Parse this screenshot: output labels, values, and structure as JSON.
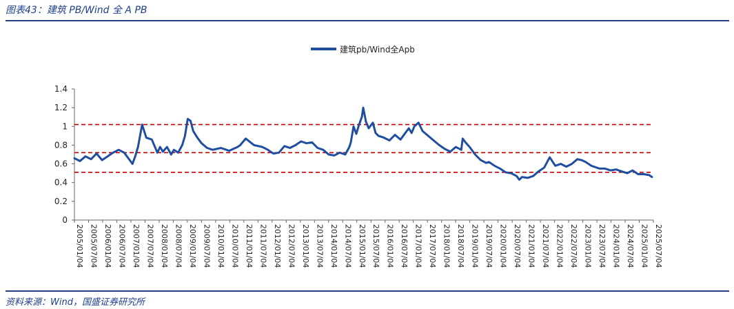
{
  "header": {
    "title": "图表43：建筑 PB/Wind 全 A PB"
  },
  "footer": {
    "source": "资料来源：Wind，国盛证券研究所"
  },
  "colors": {
    "series": "#1f4ea1",
    "reference": "#c00000",
    "accent": "#1f3f8a"
  },
  "chart_data": {
    "type": "line",
    "title": "",
    "xlabel": "",
    "ylabel": "",
    "ylim": [
      0,
      1.4
    ],
    "yticks": [
      "0",
      "0.2",
      "0.4",
      "0.6",
      "0.8",
      "1",
      "1.2",
      "1.4"
    ],
    "x_tick_labels": [
      "2005/01/04",
      "2005/07/04",
      "2006/01/04",
      "2006/07/04",
      "2007/01/04",
      "2007/07/04",
      "2008/01/04",
      "2008/07/04",
      "2009/01/04",
      "2009/07/04",
      "2010/01/04",
      "2010/07/04",
      "2011/01/04",
      "2011/07/04",
      "2012/01/04",
      "2012/07/04",
      "2013/01/04",
      "2013/07/04",
      "2014/01/04",
      "2014/07/04",
      "2015/01/04",
      "2015/07/04",
      "2016/01/04",
      "2016/07/04",
      "2017/01/04",
      "2017/07/04",
      "2018/01/04",
      "2018/07/04",
      "2019/01/04",
      "2019/07/04",
      "2020/01/04",
      "2020/07/04",
      "2021/01/04",
      "2021/07/04",
      "2022/01/04",
      "2022/07/04",
      "2023/01/04",
      "2023/07/04",
      "2024/01/04",
      "2024/07/04",
      "2025/01/04",
      "2025/07/04"
    ],
    "reference_lines": [
      1.02,
      0.72,
      0.51
    ],
    "legend": {
      "position": "top",
      "label": "建筑pb/Wind全Apb"
    },
    "series": [
      {
        "name": "建筑pb/Wind全Apb",
        "x": [
          2005.0,
          2005.2,
          2005.4,
          2005.6,
          2005.8,
          2006.0,
          2006.2,
          2006.4,
          2006.6,
          2006.8,
          2007.0,
          2007.1,
          2007.2,
          2007.3,
          2007.45,
          2007.6,
          2007.8,
          2008.0,
          2008.1,
          2008.2,
          2008.35,
          2008.5,
          2008.6,
          2008.75,
          2008.9,
          2009.0,
          2009.1,
          2009.2,
          2009.3,
          2009.45,
          2009.6,
          2009.8,
          2010.0,
          2010.3,
          2010.6,
          2010.9,
          2011.0,
          2011.2,
          2011.5,
          2011.8,
          2012.0,
          2012.2,
          2012.4,
          2012.6,
          2012.8,
          2013.0,
          2013.2,
          2013.4,
          2013.6,
          2013.8,
          2014.0,
          2014.2,
          2014.4,
          2014.6,
          2014.8,
          2014.95,
          2015.0,
          2015.1,
          2015.2,
          2015.3,
          2015.4,
          2015.45,
          2015.55,
          2015.65,
          2015.8,
          2015.9,
          2016.0,
          2016.2,
          2016.4,
          2016.6,
          2016.8,
          2017.0,
          2017.1,
          2017.2,
          2017.3,
          2017.45,
          2017.6,
          2017.8,
          2018.0,
          2018.2,
          2018.4,
          2018.6,
          2018.8,
          2019.0,
          2019.05,
          2019.15,
          2019.3,
          2019.5,
          2019.7,
          2019.9,
          2020.0,
          2020.2,
          2020.4,
          2020.6,
          2020.8,
          2021.0,
          2021.1,
          2021.2,
          2021.4,
          2021.6,
          2021.8,
          2022.0,
          2022.2,
          2022.4,
          2022.6,
          2022.8,
          2023.0,
          2023.2,
          2023.35,
          2023.5,
          2023.7,
          2023.9,
          2024.0,
          2024.2,
          2024.4,
          2024.6,
          2024.8,
          2025.0,
          2025.2,
          2025.4,
          2025.6,
          2025.8,
          2025.9
        ],
        "values": [
          0.66,
          0.63,
          0.68,
          0.65,
          0.71,
          0.64,
          0.68,
          0.72,
          0.75,
          0.72,
          0.64,
          0.6,
          0.68,
          0.78,
          1.02,
          0.88,
          0.86,
          0.72,
          0.78,
          0.73,
          0.78,
          0.7,
          0.75,
          0.72,
          0.8,
          0.9,
          1.08,
          1.06,
          0.95,
          0.88,
          0.82,
          0.77,
          0.75,
          0.77,
          0.74,
          0.78,
          0.8,
          0.87,
          0.8,
          0.78,
          0.75,
          0.71,
          0.72,
          0.79,
          0.77,
          0.8,
          0.84,
          0.82,
          0.83,
          0.77,
          0.75,
          0.7,
          0.69,
          0.72,
          0.7,
          0.78,
          0.83,
          1.0,
          0.92,
          1.02,
          1.1,
          1.2,
          1.05,
          0.98,
          1.04,
          0.93,
          0.9,
          0.88,
          0.85,
          0.91,
          0.86,
          0.94,
          0.98,
          0.93,
          1.0,
          1.04,
          0.95,
          0.9,
          0.85,
          0.8,
          0.76,
          0.73,
          0.78,
          0.75,
          0.87,
          0.83,
          0.78,
          0.7,
          0.64,
          0.61,
          0.62,
          0.58,
          0.55,
          0.51,
          0.5,
          0.47,
          0.43,
          0.46,
          0.45,
          0.47,
          0.52,
          0.56,
          0.67,
          0.58,
          0.6,
          0.57,
          0.6,
          0.65,
          0.64,
          0.62,
          0.58,
          0.56,
          0.55,
          0.55,
          0.53,
          0.54,
          0.52,
          0.5,
          0.53,
          0.49,
          0.49,
          0.48,
          0.46
        ]
      }
    ]
  }
}
